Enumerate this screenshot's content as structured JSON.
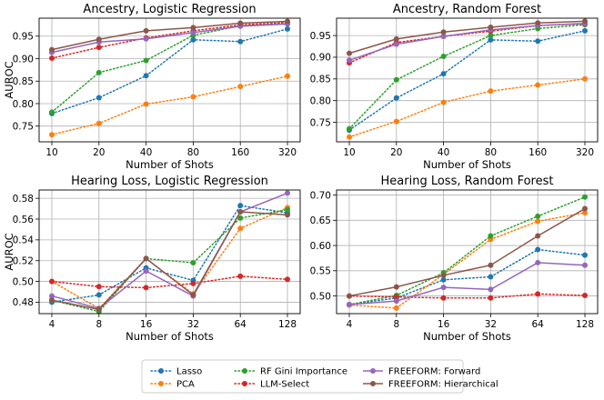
{
  "chart_data": [
    {
      "type": "line",
      "title": "Ancestry, Logistic Regression",
      "xlabel": "Number of Shots",
      "ylabel": "AUROC",
      "categories": [
        "10",
        "20",
        "40",
        "80",
        "160",
        "320"
      ],
      "ylim": [
        0.715,
        0.99
      ],
      "yticks": [
        0.75,
        0.8,
        0.85,
        0.9,
        0.95
      ],
      "ytick_labels": [
        "0.75",
        "0.80",
        "0.85",
        "0.90",
        "0.95"
      ],
      "grid": true,
      "series": [
        {
          "name": "Lasso",
          "values": [
            0.778,
            0.813,
            0.862,
            0.942,
            0.938,
            0.966
          ]
        },
        {
          "name": "PCA",
          "values": [
            0.731,
            0.756,
            0.799,
            0.815,
            0.838,
            0.861
          ]
        },
        {
          "name": "RF Gini Importance",
          "values": [
            0.781,
            0.869,
            0.896,
            0.952,
            0.973,
            0.977
          ]
        },
        {
          "name": "LLM-Select",
          "values": [
            0.901,
            0.925,
            0.946,
            0.962,
            0.975,
            0.98
          ]
        },
        {
          "name": "FREEFORM: Forward",
          "values": [
            0.914,
            0.937,
            0.944,
            0.958,
            0.972,
            0.977
          ]
        },
        {
          "name": "FREEFORM: Hierarchical",
          "values": [
            0.92,
            0.943,
            0.962,
            0.969,
            0.979,
            0.983
          ]
        }
      ]
    },
    {
      "type": "line",
      "title": "Ancestry, Random Forest",
      "xlabel": "Number of Shots",
      "ylabel": "",
      "categories": [
        "10",
        "20",
        "40",
        "80",
        "160",
        "320"
      ],
      "ylim": [
        0.705,
        0.99
      ],
      "yticks": [
        0.75,
        0.8,
        0.85,
        0.9,
        0.95
      ],
      "ytick_labels": [
        "0.75",
        "0.80",
        "0.85",
        "0.90",
        "0.95"
      ],
      "grid": true,
      "series": [
        {
          "name": "Lasso",
          "values": [
            0.732,
            0.806,
            0.862,
            0.94,
            0.937,
            0.961
          ]
        },
        {
          "name": "PCA",
          "values": [
            0.716,
            0.752,
            0.796,
            0.822,
            0.836,
            0.85
          ]
        },
        {
          "name": "RF Gini Importance",
          "values": [
            0.735,
            0.848,
            0.902,
            0.95,
            0.966,
            0.975
          ]
        },
        {
          "name": "LLM-Select",
          "values": [
            0.887,
            0.934,
            0.948,
            0.96,
            0.973,
            0.977
          ]
        },
        {
          "name": "FREEFORM: Forward",
          "values": [
            0.893,
            0.93,
            0.948,
            0.963,
            0.973,
            0.978
          ]
        },
        {
          "name": "FREEFORM: Hierarchical",
          "values": [
            0.909,
            0.942,
            0.958,
            0.969,
            0.979,
            0.983
          ]
        }
      ]
    },
    {
      "type": "line",
      "title": "Hearing Loss, Logistic Regression",
      "xlabel": "Number of Shots",
      "ylabel": "AUROC",
      "categories": [
        "4",
        "8",
        "16",
        "32",
        "64",
        "128"
      ],
      "ylim": [
        0.469,
        0.588
      ],
      "yticks": [
        0.48,
        0.5,
        0.52,
        0.54,
        0.56,
        0.58
      ],
      "ytick_labels": [
        "0.48",
        "0.50",
        "0.52",
        "0.54",
        "0.56",
        "0.58"
      ],
      "grid": true,
      "series": [
        {
          "name": "Lasso",
          "values": [
            0.48,
            0.487,
            0.513,
            0.501,
            0.573,
            0.566
          ]
        },
        {
          "name": "PCA",
          "values": [
            0.5,
            0.474,
            0.522,
            0.488,
            0.551,
            0.571
          ]
        },
        {
          "name": "RF Gini Importance",
          "values": [
            0.482,
            0.471,
            0.522,
            0.518,
            0.561,
            0.569
          ]
        },
        {
          "name": "LLM-Select",
          "values": [
            0.5,
            0.495,
            0.494,
            0.498,
            0.505,
            0.502
          ]
        },
        {
          "name": "FREEFORM: Forward",
          "values": [
            0.486,
            0.474,
            0.51,
            0.486,
            0.567,
            0.585
          ]
        },
        {
          "name": "FREEFORM: Hierarchical",
          "values": [
            0.482,
            0.473,
            0.522,
            0.487,
            0.567,
            0.564
          ]
        }
      ]
    },
    {
      "type": "line",
      "title": "Hearing Loss, Random Forest",
      "xlabel": "Number of Shots",
      "ylabel": "",
      "categories": [
        "4",
        "8",
        "16",
        "32",
        "64",
        "128"
      ],
      "ylim": [
        0.465,
        0.71
      ],
      "yticks": [
        0.5,
        0.55,
        0.6,
        0.65,
        0.7
      ],
      "ytick_labels": [
        "0.50",
        "0.55",
        "0.60",
        "0.65",
        "0.70"
      ],
      "grid": true,
      "series": [
        {
          "name": "Lasso",
          "values": [
            0.483,
            0.496,
            0.532,
            0.538,
            0.592,
            0.581
          ]
        },
        {
          "name": "PCA",
          "values": [
            0.482,
            0.476,
            0.543,
            0.612,
            0.648,
            0.665
          ]
        },
        {
          "name": "RF Gini Importance",
          "values": [
            0.483,
            0.501,
            0.546,
            0.619,
            0.658,
            0.696
          ]
        },
        {
          "name": "LLM-Select",
          "values": [
            0.5,
            0.498,
            0.496,
            0.496,
            0.504,
            0.501
          ]
        },
        {
          "name": "FREEFORM: Forward",
          "values": [
            0.483,
            0.49,
            0.517,
            0.513,
            0.566,
            0.561
          ]
        },
        {
          "name": "FREEFORM: Hierarchical",
          "values": [
            0.5,
            0.518,
            0.541,
            0.561,
            0.619,
            0.673
          ]
        }
      ]
    }
  ],
  "legend": {
    "position": "bottom-center",
    "entries": [
      {
        "name": "Lasso",
        "color": "#1f77b4",
        "style": "dotted"
      },
      {
        "name": "PCA",
        "color": "#ff7f0e",
        "style": "dotted"
      },
      {
        "name": "RF Gini Importance",
        "color": "#2ca02c",
        "style": "dotted"
      },
      {
        "name": "LLM-Select",
        "color": "#d62728",
        "style": "dotted"
      },
      {
        "name": "FREEFORM: Forward",
        "color": "#9467bd",
        "style": "solid"
      },
      {
        "name": "FREEFORM: Hierarchical",
        "color": "#8c564b",
        "style": "solid"
      }
    ]
  }
}
